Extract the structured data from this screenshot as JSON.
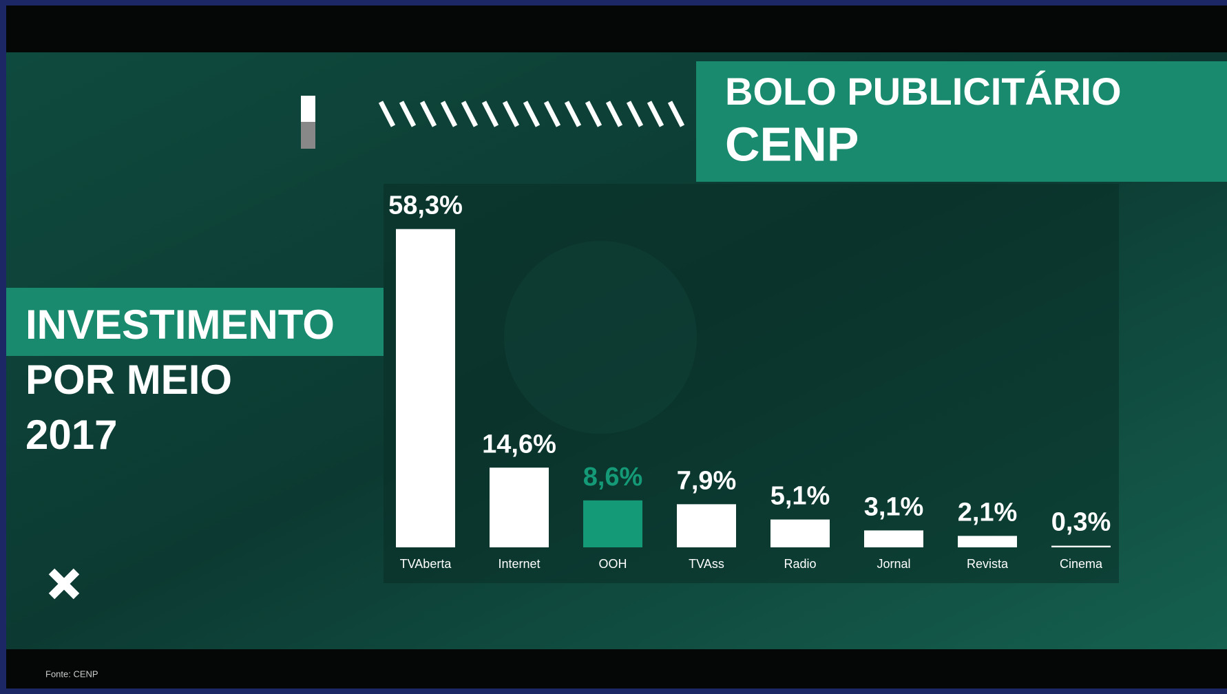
{
  "chart_data": {
    "type": "bar",
    "title": "BOLO PUBLICITÁRIO",
    "subtitle": "CENP",
    "side_title": [
      "INVESTIMENTO",
      "POR MEIO",
      "2017"
    ],
    "source": "Fonte: CENP",
    "categories": [
      "TVAberta",
      "Internet",
      "OOH",
      "TVAss",
      "Radio",
      "Jornal",
      "Revista",
      "Cinema"
    ],
    "values": [
      58.3,
      14.6,
      8.6,
      7.9,
      5.1,
      3.1,
      2.1,
      0.3
    ],
    "value_labels": [
      "58,3%",
      "14,6%",
      "8,6%",
      "7,9%",
      "5,1%",
      "3,1%",
      "2,1%",
      "0,3%"
    ],
    "colors": [
      "#ffffff",
      "#ffffff",
      "#159a78",
      "#ffffff",
      "#ffffff",
      "#ffffff",
      "#ffffff",
      "#ffffff"
    ]
  }
}
